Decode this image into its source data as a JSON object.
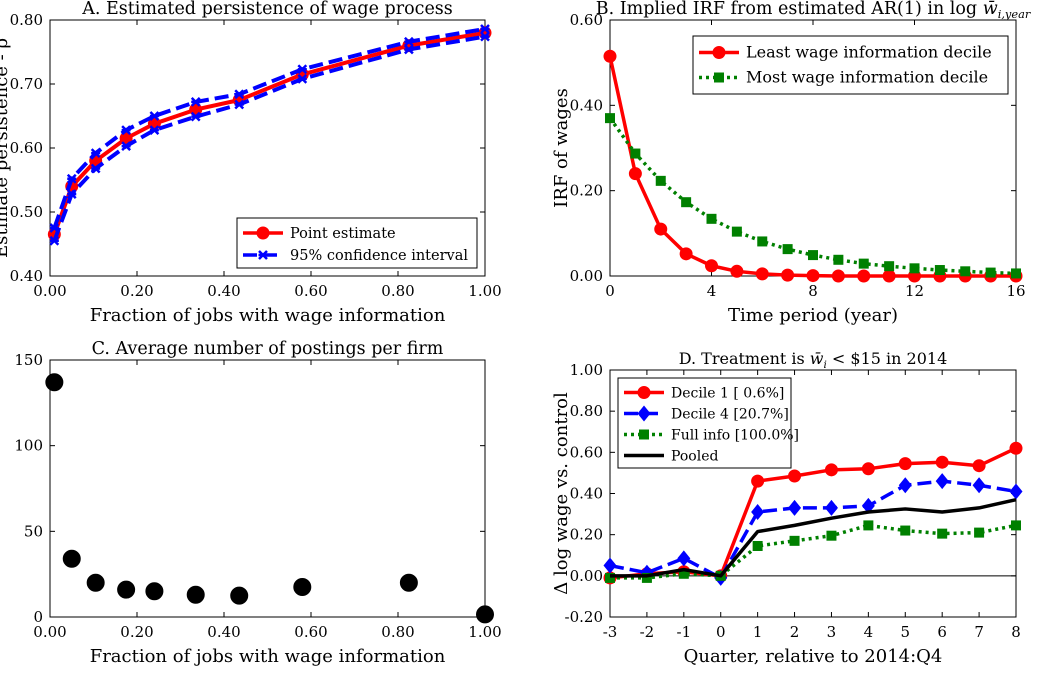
{
  "chart_data": [
    {
      "id": "A",
      "type": "line",
      "title": "A. Estimated persistence of wage process",
      "xlabel": "Fraction of jobs with wage information",
      "ylabel": "Estimate persistence - ρ̂",
      "xlim": [
        0,
        1
      ],
      "ylim": [
        0.4,
        0.8
      ],
      "xticks": [
        0,
        0.2,
        0.4,
        0.6,
        0.8,
        1.0
      ],
      "xticklabels": [
        "0.00",
        "0.20",
        "0.40",
        "0.60",
        "0.80",
        "1.00"
      ],
      "yticks": [
        0.4,
        0.5,
        0.6,
        0.7,
        0.8
      ],
      "yticklabels": [
        "0.40",
        "0.50",
        "0.60",
        "0.70",
        "0.80"
      ],
      "legend_position": "bottom-right",
      "series": [
        {
          "name": "Point estimate",
          "color": "#ff0000",
          "style": "solid",
          "marker": "circle",
          "x": [
            0.01,
            0.05,
            0.105,
            0.175,
            0.24,
            0.335,
            0.435,
            0.58,
            0.825,
            1.0
          ],
          "y": [
            0.465,
            0.54,
            0.58,
            0.615,
            0.638,
            0.66,
            0.675,
            0.715,
            0.76,
            0.78
          ]
        },
        {
          "name": "95% confidence interval",
          "color": "#0000ff",
          "style": "dashed",
          "marker": "x",
          "x": [
            0.01,
            0.05,
            0.105,
            0.175,
            0.24,
            0.335,
            0.435,
            0.58,
            0.825,
            1.0
          ],
          "y": [
            0.475,
            0.552,
            0.592,
            0.628,
            0.65,
            0.672,
            0.684,
            0.723,
            0.766,
            0.786
          ]
        },
        {
          "name": "",
          "color": "#0000ff",
          "style": "dashed",
          "marker": "x",
          "x": [
            0.01,
            0.05,
            0.105,
            0.175,
            0.24,
            0.335,
            0.435,
            0.58,
            0.825,
            1.0
          ],
          "y": [
            0.455,
            0.528,
            0.568,
            0.603,
            0.628,
            0.649,
            0.668,
            0.708,
            0.754,
            0.774
          ]
        }
      ]
    },
    {
      "id": "B",
      "type": "line",
      "title": "B. Implied IRF from estimated AR(1) in log",
      "title_math": "w̄",
      "title_math_sub": "i,year",
      "xlabel": "Time period (year)",
      "ylabel": "IRF of wages",
      "xlim": [
        0,
        16
      ],
      "ylim": [
        0,
        0.6
      ],
      "xticks": [
        0,
        4,
        8,
        12,
        16
      ],
      "xticklabels": [
        "0",
        "4",
        "8",
        "12",
        "16"
      ],
      "yticks": [
        0,
        0.2,
        0.4,
        0.6
      ],
      "yticklabels": [
        "0.00",
        "0.20",
        "0.40",
        "0.60"
      ],
      "legend_position": "top-right",
      "series": [
        {
          "name": "Least wage information decile",
          "color": "#ff0000",
          "style": "solid",
          "marker": "circle",
          "x": [
            0,
            1,
            2,
            3,
            4,
            5,
            6,
            7,
            8,
            9,
            10,
            11,
            12,
            13,
            14,
            15,
            16
          ],
          "y": [
            0.515,
            0.24,
            0.11,
            0.052,
            0.024,
            0.011,
            0.005,
            0.002,
            0.001,
            0.0,
            0.0,
            0.0,
            0.0,
            0.0,
            0.0,
            0.0,
            0.0
          ]
        },
        {
          "name": "Most wage information decile",
          "color": "#008000",
          "style": "dotted",
          "marker": "square",
          "x": [
            0,
            1,
            2,
            3,
            4,
            5,
            6,
            7,
            8,
            9,
            10,
            11,
            12,
            13,
            14,
            15,
            16
          ],
          "y": [
            0.37,
            0.287,
            0.223,
            0.173,
            0.134,
            0.104,
            0.081,
            0.063,
            0.049,
            0.038,
            0.029,
            0.023,
            0.018,
            0.014,
            0.011,
            0.008,
            0.006
          ]
        }
      ]
    },
    {
      "id": "C",
      "type": "scatter",
      "title": "C. Average number of postings per firm",
      "xlabel": "Fraction of jobs with wage information",
      "ylabel": "",
      "xlim": [
        0,
        1
      ],
      "ylim": [
        0,
        150
      ],
      "xticks": [
        0,
        0.2,
        0.4,
        0.6,
        0.8,
        1.0
      ],
      "xticklabels": [
        "0.00",
        "0.20",
        "0.40",
        "0.60",
        "0.80",
        "1.00"
      ],
      "yticks": [
        0,
        50,
        100,
        150
      ],
      "yticklabels": [
        "0",
        "50",
        "100",
        "150"
      ],
      "series": [
        {
          "name": "",
          "color": "#000000",
          "marker": "circle",
          "x": [
            0.01,
            0.05,
            0.105,
            0.175,
            0.24,
            0.335,
            0.435,
            0.58,
            0.825,
            1.0
          ],
          "y": [
            137,
            34,
            20,
            16,
            15,
            13,
            12.5,
            17.5,
            20,
            1.5
          ]
        }
      ]
    },
    {
      "id": "D",
      "type": "line",
      "title": "D. Treatment is",
      "title_math": "w̄",
      "title_math_sub": "i",
      "title_suffix": " < $15 in 2014",
      "xlabel": "Quarter, relative to 2014:Q4",
      "ylabel": "Δ log wage vs. control",
      "xlim": [
        -3,
        8
      ],
      "ylim": [
        -0.2,
        1.0
      ],
      "xticks": [
        -3,
        -2,
        -1,
        0,
        1,
        2,
        3,
        4,
        5,
        6,
        7,
        8
      ],
      "xticklabels": [
        "-3",
        "-2",
        "-1",
        "0",
        "1",
        "2",
        "3",
        "4",
        "5",
        "6",
        "7",
        "8"
      ],
      "yticks": [
        -0.2,
        0,
        0.2,
        0.4,
        0.6,
        0.8,
        1.0
      ],
      "yticklabels": [
        "-0.20",
        "0.00",
        "0.20",
        "0.40",
        "0.60",
        "0.80",
        "1.00"
      ],
      "legend_position": "top-left",
      "series": [
        {
          "name": "Decile 1 [ 0.6%]",
          "color": "#ff0000",
          "style": "solid",
          "marker": "circle",
          "x": [
            -3,
            -2,
            -1,
            0,
            1,
            2,
            3,
            4,
            5,
            6,
            7,
            8
          ],
          "y": [
            -0.01,
            0.01,
            0.02,
            0.0,
            0.46,
            0.485,
            0.515,
            0.52,
            0.545,
            0.552,
            0.535,
            0.62
          ]
        },
        {
          "name": "Decile 4 [20.7%]",
          "color": "#0000ff",
          "style": "dashed",
          "marker": "diamond",
          "x": [
            -3,
            -2,
            -1,
            0,
            1,
            2,
            3,
            4,
            5,
            6,
            7,
            8
          ],
          "y": [
            0.05,
            0.015,
            0.085,
            -0.01,
            0.31,
            0.33,
            0.33,
            0.34,
            0.44,
            0.46,
            0.44,
            0.41
          ]
        },
        {
          "name": "Full info [100.0%]",
          "color": "#008000",
          "style": "dotted",
          "marker": "square",
          "x": [
            -3,
            -2,
            -1,
            0,
            1,
            2,
            3,
            4,
            5,
            6,
            7,
            8
          ],
          "y": [
            -0.01,
            -0.01,
            0.01,
            0.0,
            0.145,
            0.17,
            0.195,
            0.245,
            0.22,
            0.205,
            0.21,
            0.245
          ]
        },
        {
          "name": "Pooled",
          "color": "#000000",
          "style": "solid",
          "marker": "none",
          "x": [
            -3,
            -2,
            -1,
            0,
            1,
            2,
            3,
            4,
            5,
            6,
            7,
            8
          ],
          "y": [
            0.0,
            0.0,
            0.03,
            0.0,
            0.215,
            0.245,
            0.28,
            0.31,
            0.325,
            0.31,
            0.33,
            0.37
          ]
        }
      ]
    }
  ]
}
